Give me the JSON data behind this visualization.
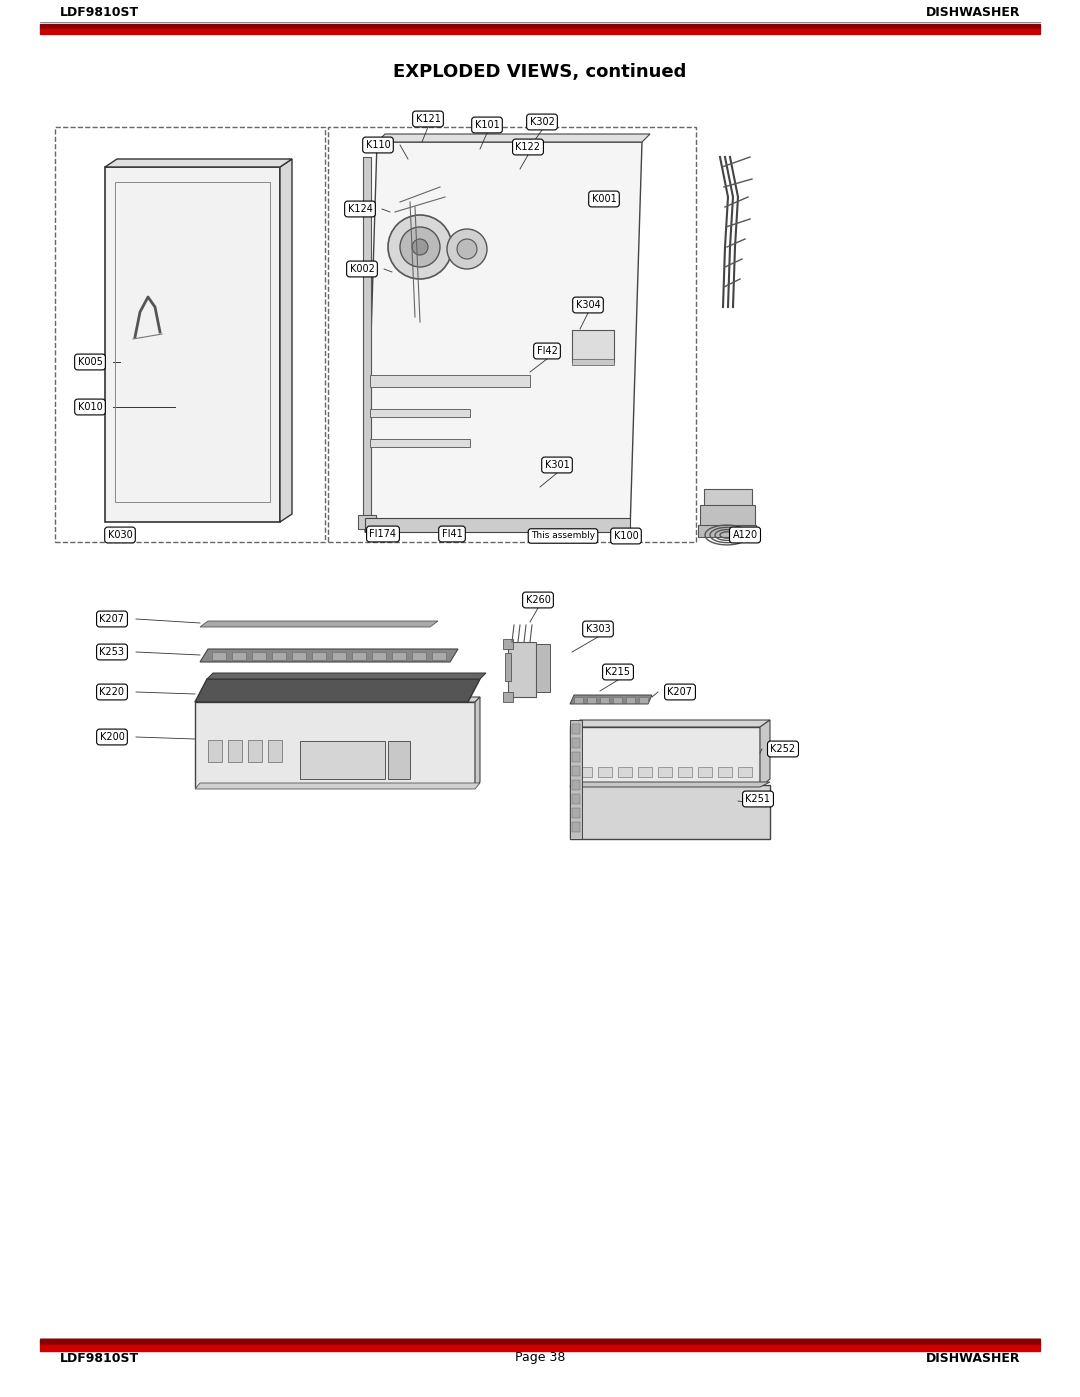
{
  "title": "EXPLODED VIEWS, continued",
  "header_left": "LDF9810ST",
  "header_right": "DISHWASHER",
  "footer_left": "LDF9810ST",
  "footer_center": "Page 38",
  "footer_right": "DISHWASHER",
  "bg_color": "#ffffff",
  "text_color": "#000000"
}
